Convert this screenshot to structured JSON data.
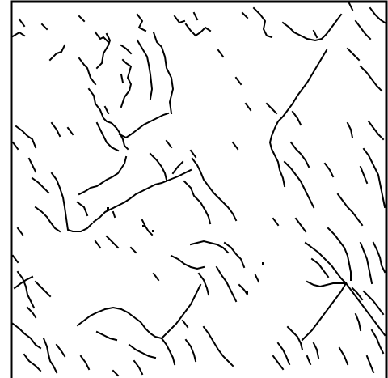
{
  "image": {
    "kind": "binary-line-drawing",
    "description_tag": "drainage-network-skeleton",
    "colors": {
      "background": "#ffffff",
      "lines": "#000000",
      "frame": "#000000"
    }
  }
}
